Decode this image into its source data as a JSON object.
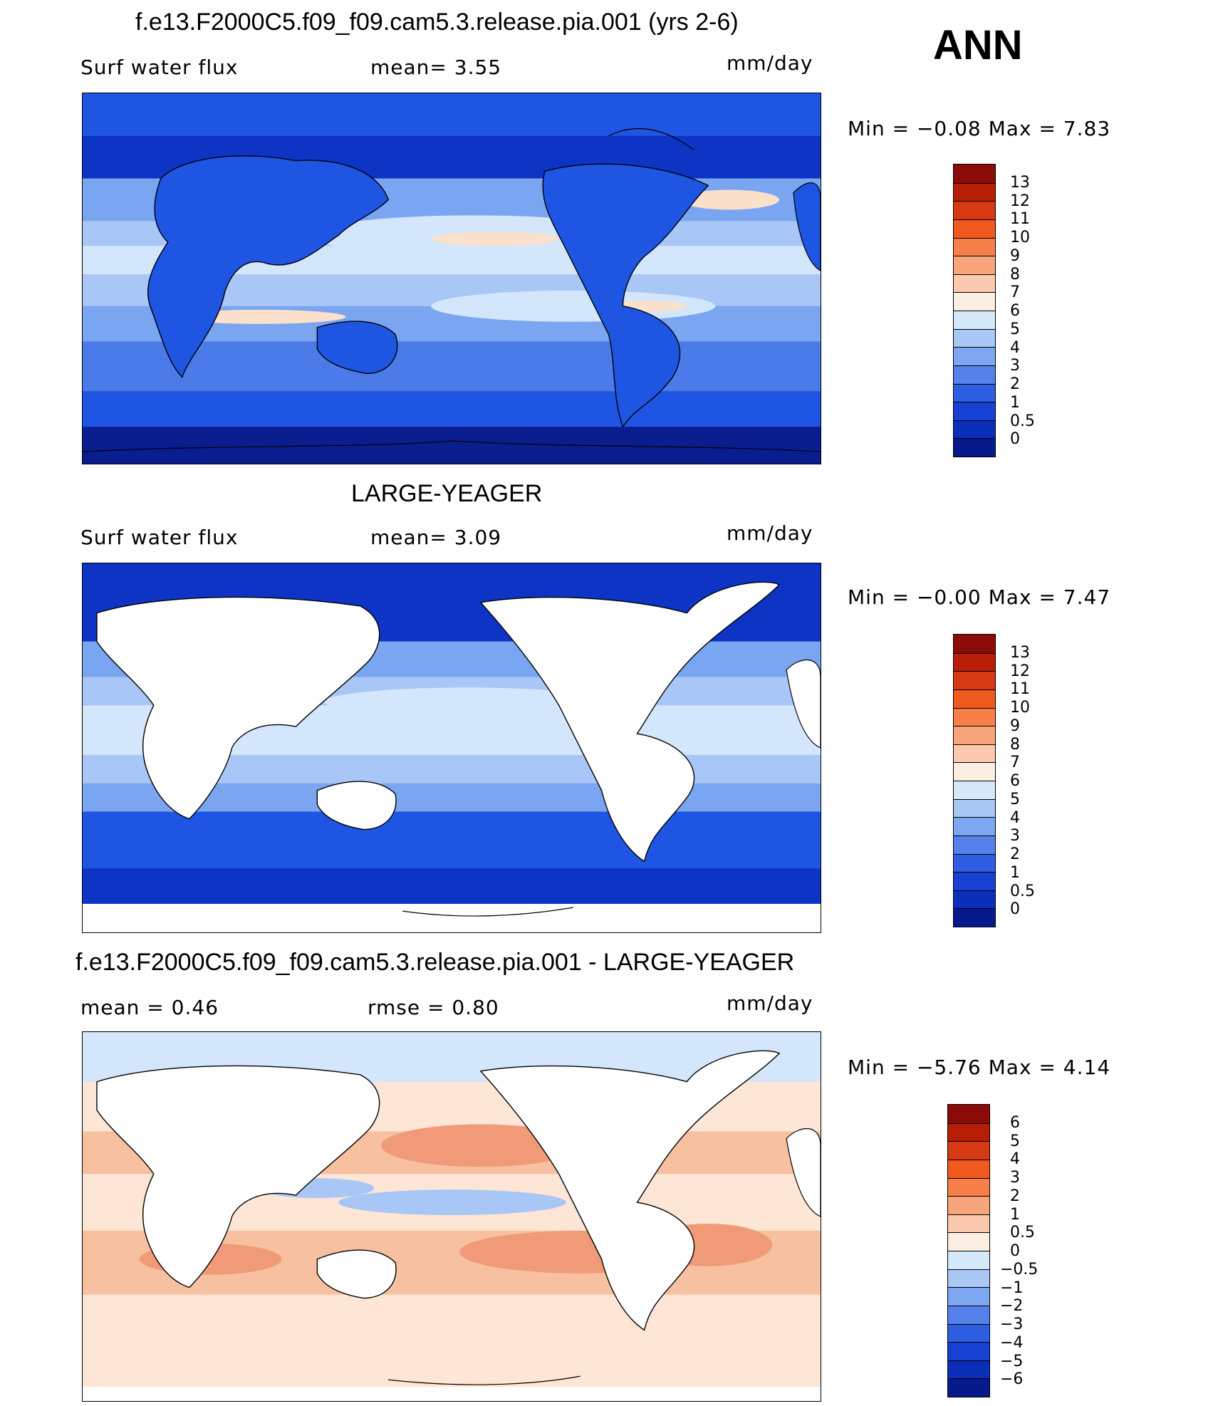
{
  "season": "ANN",
  "colors": {
    "land": "#ffffff",
    "model_ocean": [
      "#0a1d8f",
      "#0d34c4",
      "#1f55e3",
      "#4a7be8",
      "#7aa5f0",
      "#a8c6f6",
      "#d3e6fb",
      "#fbe0cc"
    ],
    "obs_ocean": [
      "#0d34c4",
      "#1f55e3",
      "#4a7be8",
      "#7aa5f0",
      "#a8c6f6",
      "#d3e6fb",
      "#fbe0cc"
    ],
    "diff_ocean": [
      "#d3e6fb",
      "#fde6d5",
      "#f7c0a0",
      "#f09a78",
      "#e9774f"
    ]
  },
  "panels": [
    {
      "title": "f.e13.F2000C5.f09_f09.cam5.3.release.pia.001 (yrs 2-6)",
      "left_label": "Surf  water  flux",
      "mid_label": "mean=     3.55",
      "units": "mm/day",
      "minmax": "Min  =    −0.08  Max  =      7.83",
      "colorbar": {
        "labels": [
          "13",
          "12",
          "11",
          "10",
          "9",
          "8",
          "7",
          "6",
          "5",
          "4",
          "3",
          "2",
          "1",
          "0.5",
          "0"
        ],
        "colors": [
          "#8b0a0a",
          "#b81e06",
          "#d63a12",
          "#f05a1f",
          "#f7804a",
          "#f9a57c",
          "#fbcaae",
          "#fdeee2",
          "#d6e9fb",
          "#a9c8f6",
          "#7da7f1",
          "#5482ea",
          "#2e5fe2",
          "#1641d2",
          "#0b2fb8",
          "#061a8c"
        ]
      }
    },
    {
      "title": "LARGE-YEAGER",
      "left_label": "Surf  water  flux",
      "mid_label": "mean=     3.09",
      "units": "mm/day",
      "minmax": "Min  =    −0.00  Max  =      7.47",
      "colorbar": {
        "labels": [
          "13",
          "12",
          "11",
          "10",
          "9",
          "8",
          "7",
          "6",
          "5",
          "4",
          "3",
          "2",
          "1",
          "0.5",
          "0"
        ],
        "colors": [
          "#8b0a0a",
          "#b81e06",
          "#d63a12",
          "#f05a1f",
          "#f7804a",
          "#f9a57c",
          "#fbcaae",
          "#fdeee2",
          "#d6e9fb",
          "#a9c8f6",
          "#7da7f1",
          "#5482ea",
          "#2e5fe2",
          "#1641d2",
          "#0b2fb8",
          "#061a8c"
        ]
      }
    },
    {
      "title": "f.e13.F2000C5.f09_f09.cam5.3.release.pia.001 - LARGE-YEAGER",
      "left_label": "mean  =      0.46",
      "mid_label": "rmse  =      0.80",
      "units": "mm/day",
      "minmax": "Min  =    −5.76  Max  =      4.14",
      "colorbar": {
        "labels": [
          "6",
          "5",
          "4",
          "3",
          "2",
          "1",
          "0.5",
          "0",
          "−0.5",
          "−1",
          "−2",
          "−3",
          "−4",
          "−5",
          "−6"
        ],
        "colors": [
          "#8b0a0a",
          "#b81e06",
          "#d63a12",
          "#f05a1f",
          "#f7804a",
          "#f9a57c",
          "#fbcaae",
          "#fdeee2",
          "#d6e9fb",
          "#a9c8f6",
          "#7da7f1",
          "#5482ea",
          "#2e5fe2",
          "#1641d2",
          "#0b2fb8",
          "#061a8c"
        ]
      }
    }
  ]
}
